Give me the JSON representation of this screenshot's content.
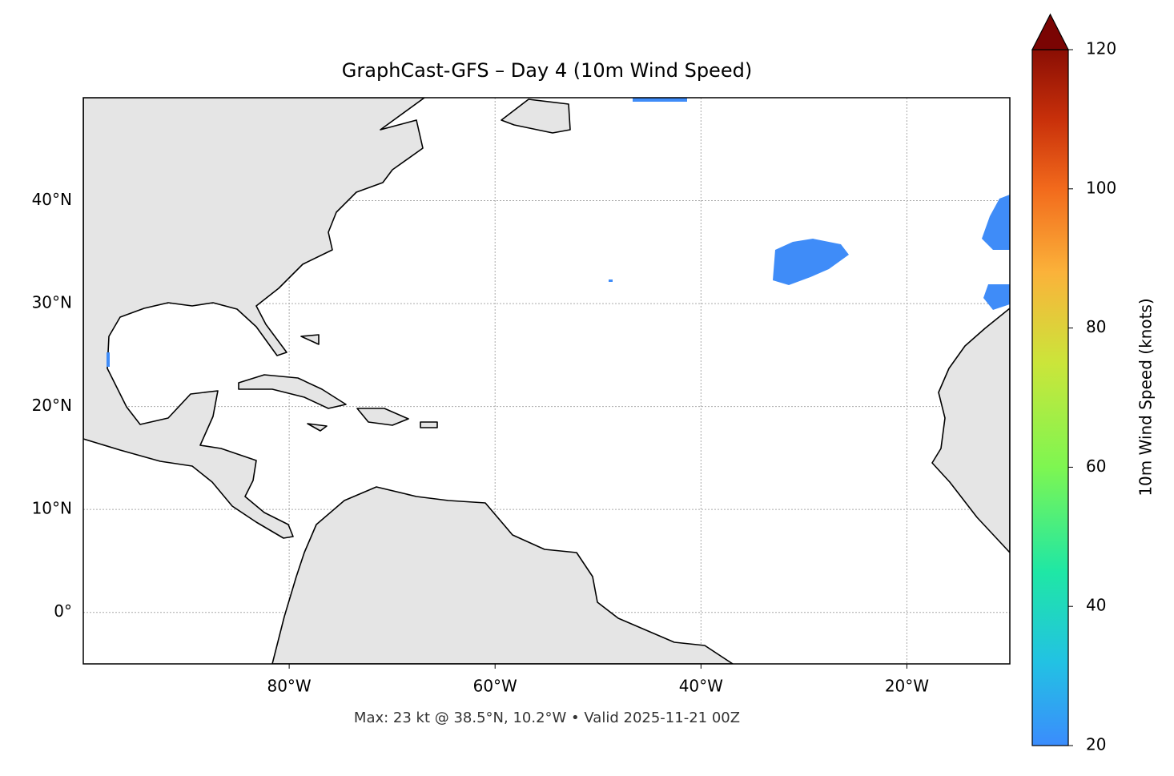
{
  "chart_data": {
    "type": "map",
    "title": "GraphCast-GFS – Day 4 (10m Wind Speed)",
    "caption": "Max: 23 kt @ 38.5°N, 10.2°W • Valid 2025-11-21 00Z",
    "xlim": [
      -100,
      -10
    ],
    "ylim": [
      -5,
      50
    ],
    "xticks": [
      {
        "value": -80,
        "label": "80°W"
      },
      {
        "value": -60,
        "label": "60°W"
      },
      {
        "value": -40,
        "label": "40°W"
      },
      {
        "value": -20,
        "label": "20°W"
      }
    ],
    "yticks": [
      {
        "value": 0,
        "label": "0°"
      },
      {
        "value": 10,
        "label": "10°N"
      },
      {
        "value": 20,
        "label": "20°N"
      },
      {
        "value": 30,
        "label": "30°N"
      },
      {
        "value": 40,
        "label": "40°N"
      }
    ],
    "grid": true,
    "colorbar": {
      "label": "10m Wind Speed (knots)",
      "lim": [
        20,
        120
      ],
      "ticks": [
        20,
        40,
        60,
        80,
        100,
        120
      ],
      "extend": "max"
    }
  }
}
